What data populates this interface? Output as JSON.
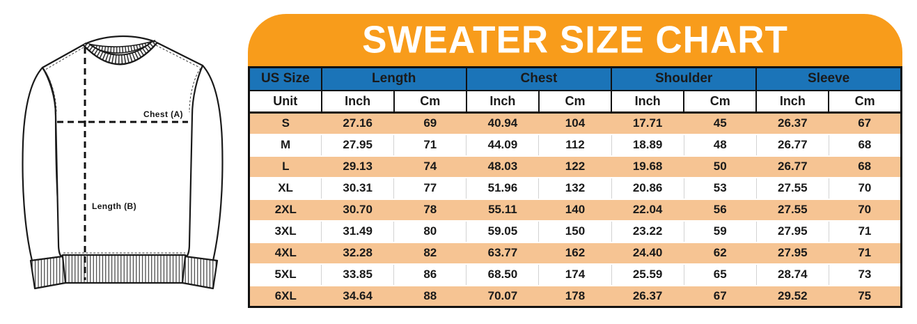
{
  "title": "SWEATER SIZE CHART",
  "figure": {
    "chest_label": "Chest (A)",
    "length_label": "Length (B)"
  },
  "colors": {
    "banner_orange": "#F89C1B",
    "header_blue": "#1B74B8",
    "header_blue_text": "#9EDBF7",
    "row_peach": "#F6C493",
    "table_border": "#111111"
  },
  "table": {
    "group_headers": [
      {
        "label": "US Size",
        "span": 1
      },
      {
        "label": "Length",
        "span": 2
      },
      {
        "label": "Chest",
        "span": 2
      },
      {
        "label": "Shoulder",
        "span": 2
      },
      {
        "label": "Sleeve",
        "span": 2
      }
    ],
    "unit_row": [
      "Unit",
      "Inch",
      "Cm",
      "Inch",
      "Cm",
      "Inch",
      "Cm",
      "Inch",
      "Cm"
    ],
    "rows": [
      {
        "size": "S",
        "values": [
          "27.16",
          "69",
          "40.94",
          "104",
          "17.71",
          "45",
          "26.37",
          "67"
        ]
      },
      {
        "size": "M",
        "values": [
          "27.95",
          "71",
          "44.09",
          "112",
          "18.89",
          "48",
          "26.77",
          "68"
        ]
      },
      {
        "size": "L",
        "values": [
          "29.13",
          "74",
          "48.03",
          "122",
          "19.68",
          "50",
          "26.77",
          "68"
        ]
      },
      {
        "size": "XL",
        "values": [
          "30.31",
          "77",
          "51.96",
          "132",
          "20.86",
          "53",
          "27.55",
          "70"
        ]
      },
      {
        "size": "2XL",
        "values": [
          "30.70",
          "78",
          "55.11",
          "140",
          "22.04",
          "56",
          "27.55",
          "70"
        ]
      },
      {
        "size": "3XL",
        "values": [
          "31.49",
          "80",
          "59.05",
          "150",
          "23.22",
          "59",
          "27.95",
          "71"
        ]
      },
      {
        "size": "4XL",
        "values": [
          "32.28",
          "82",
          "63.77",
          "162",
          "24.40",
          "62",
          "27.95",
          "71"
        ]
      },
      {
        "size": "5XL",
        "values": [
          "33.85",
          "86",
          "68.50",
          "174",
          "25.59",
          "65",
          "28.74",
          "73"
        ]
      },
      {
        "size": "6XL",
        "values": [
          "34.64",
          "88",
          "70.07",
          "178",
          "26.37",
          "67",
          "29.52",
          "75"
        ]
      }
    ]
  },
  "chart_data": {
    "type": "table",
    "title": "SWEATER SIZE CHART",
    "column_groups": [
      "US Size",
      "Length",
      "Chest",
      "Shoulder",
      "Sleeve"
    ],
    "columns": [
      "US Size",
      "Length Inch",
      "Length Cm",
      "Chest Inch",
      "Chest Cm",
      "Shoulder Inch",
      "Shoulder Cm",
      "Sleeve Inch",
      "Sleeve Cm"
    ],
    "rows": [
      [
        "S",
        27.16,
        69,
        40.94,
        104,
        17.71,
        45,
        26.37,
        67
      ],
      [
        "M",
        27.95,
        71,
        44.09,
        112,
        18.89,
        48,
        26.77,
        68
      ],
      [
        "L",
        29.13,
        74,
        48.03,
        122,
        19.68,
        50,
        26.77,
        68
      ],
      [
        "XL",
        30.31,
        77,
        51.96,
        132,
        20.86,
        53,
        27.55,
        70
      ],
      [
        "2XL",
        30.7,
        78,
        55.11,
        140,
        22.04,
        56,
        27.55,
        70
      ],
      [
        "3XL",
        31.49,
        80,
        59.05,
        150,
        23.22,
        59,
        27.95,
        71
      ],
      [
        "4XL",
        32.28,
        82,
        63.77,
        162,
        24.4,
        62,
        27.95,
        71
      ],
      [
        "5XL",
        33.85,
        86,
        68.5,
        174,
        25.59,
        65,
        28.74,
        73
      ],
      [
        "6XL",
        34.64,
        88,
        70.07,
        178,
        26.37,
        67,
        29.52,
        75
      ]
    ]
  }
}
